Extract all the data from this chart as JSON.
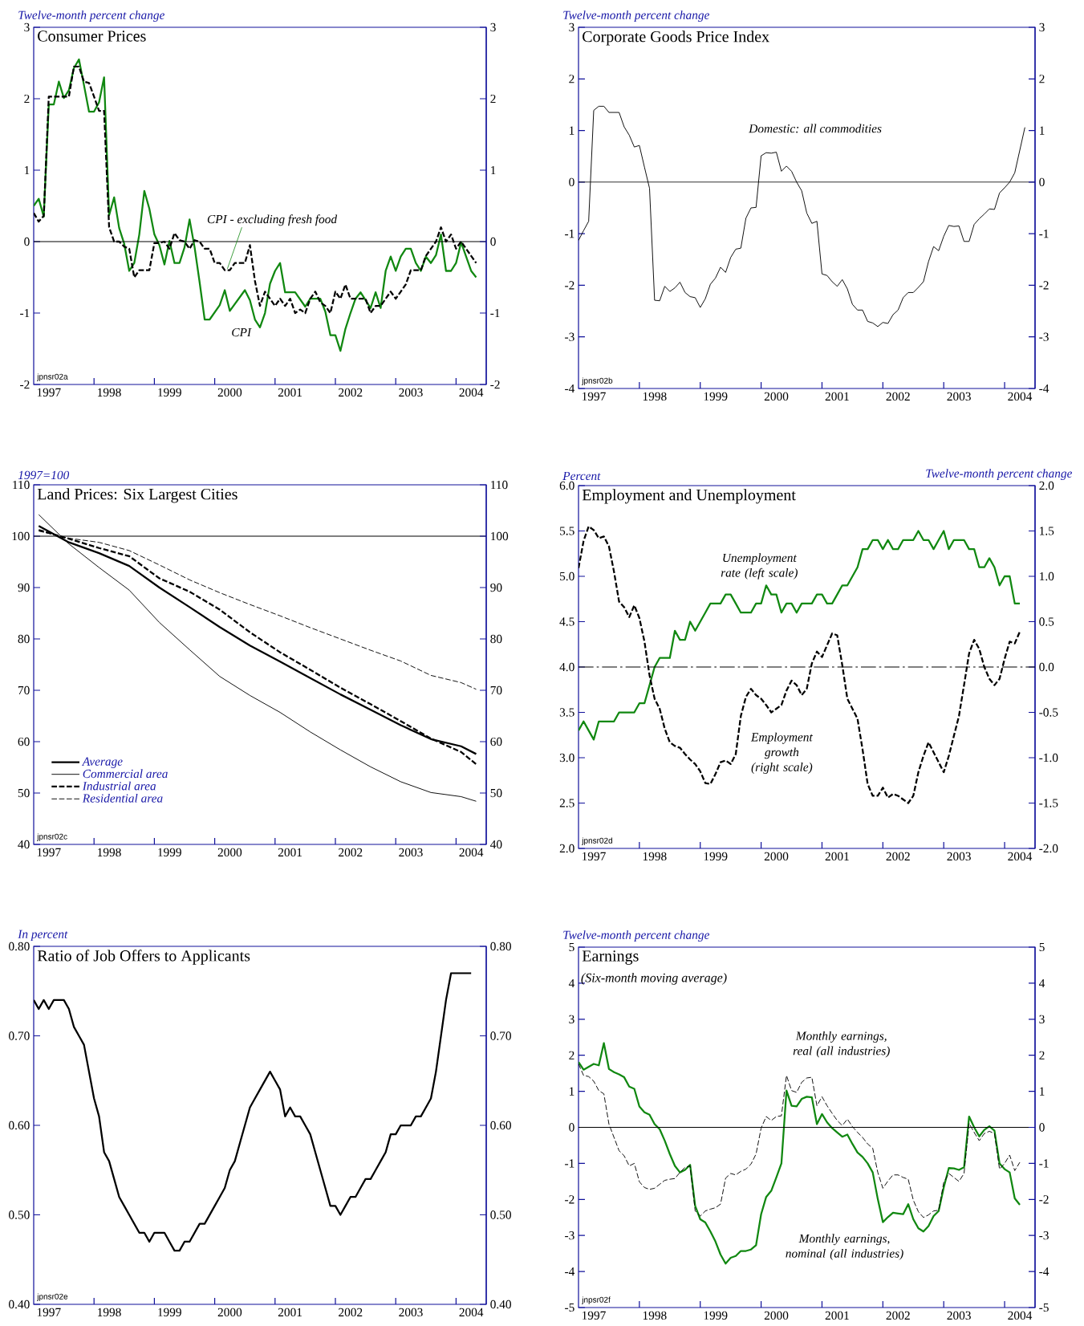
{
  "chart_data": [
    {
      "type": "line",
      "title": "Consumer Prices",
      "ylabel": "Twelve-month percent change",
      "annotations": [
        "jpnsr02a"
      ],
      "xlim": [
        "1997",
        "2004-07-01"
      ],
      "xticks": [
        {
          "value": "1997-04-01",
          "label": "1997"
        },
        {
          "value": "1998",
          "label": null
        },
        {
          "value": "1998-04-01",
          "label": "1998"
        },
        {
          "value": "1999",
          "label": null
        },
        {
          "value": "1999-04-01",
          "label": "1999"
        },
        {
          "value": "2000",
          "label": null
        },
        {
          "value": "2000-04-01",
          "label": "2000"
        },
        {
          "value": "2001",
          "label": null
        },
        {
          "value": "2001-04-01",
          "label": "2001"
        },
        {
          "value": "2002",
          "label": null
        },
        {
          "value": "2002-04-01",
          "label": "2002"
        },
        {
          "value": "2003",
          "label": null
        },
        {
          "value": "2003-04-01",
          "label": "2003"
        },
        {
          "value": "2004",
          "label": null
        },
        {
          "value": "2004-04-01",
          "label": "2004"
        }
      ],
      "ylim": [
        -2,
        3
      ],
      "yticks": [
        -2,
        -1,
        0,
        1,
        2,
        3
      ],
      "y2lim": [
        -2,
        3
      ],
      "y2ticks": [
        -2,
        -1,
        0,
        1,
        2,
        3
      ],
      "ref_lines": [
        {
          "axis": "y",
          "value": 0
        }
      ],
      "x": [
        "1997-01",
        "1997-02",
        "1997-03",
        "1997-04",
        "1997-05",
        "1997-06",
        "1997-07",
        "1997-08",
        "1997-09",
        "1997-10",
        "1997-11",
        "1997-12",
        "1998-01",
        "1998-02",
        "1998-03",
        "1998-04",
        "1998-05",
        "1998-06",
        "1998-07",
        "1998-08",
        "1998-09",
        "1998-10",
        "1998-11",
        "1998-12",
        "1999-01",
        "1999-02",
        "1999-03",
        "1999-04",
        "1999-05",
        "1999-06",
        "1999-07",
        "1999-08",
        "1999-09",
        "1999-10",
        "1999-11",
        "1999-12",
        "2000-01",
        "2000-02",
        "2000-03",
        "2000-04",
        "2000-05",
        "2000-06",
        "2000-07",
        "2000-08",
        "2000-09",
        "2000-10",
        "2000-11",
        "2000-12",
        "2001-01",
        "2001-02",
        "2001-03",
        "2001-04",
        "2001-05",
        "2001-06",
        "2001-07",
        "2001-08",
        "2001-09",
        "2001-10",
        "2001-11",
        "2001-12",
        "2002-01",
        "2002-02",
        "2002-03",
        "2002-04",
        "2002-05",
        "2002-06",
        "2002-07",
        "2002-08",
        "2002-09",
        "2002-10",
        "2002-11",
        "2002-12",
        "2003-01",
        "2003-02",
        "2003-03",
        "2003-04",
        "2003-05",
        "2003-06",
        "2003-07",
        "2003-08",
        "2003-09",
        "2003-10",
        "2003-11",
        "2003-12",
        "2004-01",
        "2004-02",
        "2004-03",
        "2004-04",
        "2004-05"
      ],
      "series": [
        {
          "name": "CPI",
          "color": "#118811",
          "line_style": "solid",
          "x": [
            "1997-01",
            "1997-02",
            "1997-03",
            "1997-04",
            "1997-05",
            "1997-06",
            "1997-07",
            "1997-08",
            "1997-09",
            "1997-10",
            "1997-11",
            "1997-12",
            "1998-01",
            "1998-02",
            "1998-03",
            "1998-04",
            "1998-05",
            "1998-06",
            "1998-07",
            "1998-08",
            "1998-09",
            "1998-10",
            "1998-11",
            "1998-12",
            "1999-01",
            "1999-02",
            "1999-03",
            "1999-04",
            "1999-05",
            "1999-06",
            "1999-07",
            "1999-08",
            "1999-09",
            "1999-10",
            "1999-11",
            "1999-12",
            "2000-02",
            "2000-03",
            "2000-04",
            "2000-07",
            "2000-08",
            "2000-09",
            "2000-10",
            "2000-11",
            "2000-12",
            "2001-01",
            "2001-02",
            "2001-03",
            "2001-05",
            "2001-07",
            "2001-08",
            "2001-10",
            "2001-11",
            "2001-12",
            "2002-01",
            "2002-02",
            "2002-03",
            "2002-04",
            "2002-05",
            "2002-06",
            "2002-07",
            "2002-08",
            "2002-09",
            "2002-10",
            "2002-11",
            "2002-12",
            "2003-01",
            "2003-02",
            "2003-03",
            "2003-04",
            "2003-05",
            "2003-06",
            "2003-07",
            "2003-08",
            "2003-09",
            "2003-10",
            "2003-11",
            "2003-12",
            "2004-01",
            "2004-02",
            "2004-03",
            "2004-04",
            "2004-05"
          ],
          "values": [
            0.5,
            0.6,
            0.35,
            1.92,
            1.92,
            2.24,
            2.01,
            2.12,
            2.43,
            2.55,
            2.19,
            1.82,
            1.82,
            1.95,
            2.3,
            0.37,
            0.62,
            0.19,
            -0.03,
            -0.41,
            -0.3,
            0.1,
            0.71,
            0.46,
            0.1,
            -0.05,
            -0.32,
            0.01,
            -0.3,
            -0.3,
            -0.08,
            0.31,
            -0.08,
            -0.57,
            -1.09,
            -1.09,
            -0.89,
            -0.68,
            -0.97,
            -0.68,
            -0.82,
            -1.09,
            -1.2,
            -1.0,
            -0.59,
            -0.41,
            -0.3,
            -0.71,
            -0.71,
            -0.91,
            -0.8,
            -0.8,
            -0.98,
            -1.31,
            -1.31,
            -1.53,
            -1.22,
            -1.0,
            -0.8,
            -0.71,
            -0.82,
            -0.93,
            -0.71,
            -0.93,
            -0.41,
            -0.21,
            -0.41,
            -0.21,
            -0.1,
            -0.1,
            -0.3,
            -0.41,
            -0.21,
            -0.3,
            -0.19,
            0.1,
            -0.41,
            -0.41,
            -0.3,
            -0.01,
            -0.21,
            -0.41,
            -0.5
          ]
        },
        {
          "name": "CPI - excluding fresh food",
          "color": "#000000",
          "line_style": "dashed",
          "values": [
            0.4,
            0.28,
            0.36,
            2.03,
            2.03,
            2.03,
            2.03,
            2.03,
            2.45,
            2.45,
            2.24,
            2.22,
            2.03,
            1.83,
            1.83,
            0.2,
            0.0,
            0.0,
            -0.07,
            -0.1,
            -0.5,
            -0.4,
            -0.4,
            -0.4,
            -0.02,
            -0.02,
            0.0,
            -0.1,
            0.12,
            0.02,
            0.0,
            -0.1,
            0.02,
            0.0,
            -0.1,
            -0.1,
            -0.3,
            -0.3,
            -0.4,
            -0.4,
            -0.3,
            -0.3,
            -0.3,
            -0.05,
            -0.55,
            -0.9,
            -0.7,
            -0.8,
            -0.9,
            -0.8,
            -0.9,
            -0.8,
            -1.0,
            -0.95,
            -1.0,
            -0.8,
            -0.7,
            -0.85,
            -0.9,
            -1.0,
            -0.7,
            -0.8,
            -0.6,
            -0.8,
            -0.8,
            -0.8,
            -0.8,
            -1.0,
            -0.9,
            -0.9,
            -0.8,
            -0.7,
            -0.8,
            -0.7,
            -0.6,
            -0.4,
            -0.4,
            -0.4,
            -0.2,
            -0.1,
            0.0,
            0.2,
            0.0,
            0.1,
            -0.1,
            0.0,
            -0.1,
            -0.2,
            -0.3
          ]
        }
      ]
    },
    {
      "type": "line",
      "title": "Corporate Goods Price Index",
      "ylabel": "Twelve-month percent change",
      "annotations": [
        "jpnsr02b"
      ],
      "xlim": [
        "1997",
        "2004-07-01"
      ],
      "xticks": [
        {
          "value": "1997-04-01",
          "label": "1997"
        },
        {
          "value": "1998",
          "label": null
        },
        {
          "value": "1998-04-01",
          "label": "1998"
        },
        {
          "value": "1999",
          "label": null
        },
        {
          "value": "1999-04-01",
          "label": "1999"
        },
        {
          "value": "2000",
          "label": null
        },
        {
          "value": "2000-04-01",
          "label": "2000"
        },
        {
          "value": "2001",
          "label": null
        },
        {
          "value": "2001-04-01",
          "label": "2001"
        },
        {
          "value": "2002",
          "label": null
        },
        {
          "value": "2002-04-01",
          "label": "2002"
        },
        {
          "value": "2003",
          "label": null
        },
        {
          "value": "2003-04-01",
          "label": "2003"
        },
        {
          "value": "2004",
          "label": null
        },
        {
          "value": "2004-04-01",
          "label": "2004"
        }
      ],
      "ylim": [
        -4,
        3
      ],
      "yticks": [
        -4,
        -3,
        -2,
        -1,
        0,
        1,
        2,
        3
      ],
      "y2lim": [
        -4,
        3
      ],
      "y2ticks": [
        -4,
        -3,
        -2,
        -1,
        0,
        1,
        2,
        3
      ],
      "ref_lines": [
        {
          "axis": "y",
          "value": 0
        }
      ],
      "x": [
        "1997-01",
        "1997-02",
        "1997-03",
        "1997-04",
        "1997-05",
        "1997-06",
        "1997-07",
        "1997-08",
        "1997-09",
        "1997-10",
        "1997-11",
        "1997-12",
        "1998-01",
        "1998-02",
        "1998-03",
        "1998-04",
        "1998-05",
        "1998-06",
        "1998-07",
        "1998-08",
        "1998-09",
        "1998-10",
        "1998-11",
        "1998-12",
        "1999-01",
        "1999-02",
        "1999-03",
        "1999-04",
        "1999-05",
        "1999-06",
        "1999-07",
        "1999-08",
        "1999-09",
        "1999-10",
        "1999-11",
        "1999-12",
        "2000-01",
        "2000-02",
        "2000-03",
        "2000-04",
        "2000-05",
        "2000-06",
        "2000-07",
        "2000-08",
        "2000-09",
        "2000-10",
        "2000-11",
        "2000-12",
        "2001-01",
        "2001-02",
        "2001-03",
        "2001-04",
        "2001-05",
        "2001-06",
        "2001-07",
        "2001-08",
        "2001-09",
        "2001-10",
        "2001-11",
        "2001-12",
        "2002-01",
        "2002-02",
        "2002-03",
        "2002-04",
        "2002-05",
        "2002-06",
        "2002-07",
        "2002-08",
        "2002-09",
        "2002-10",
        "2002-11",
        "2002-12",
        "2003-01",
        "2003-02",
        "2003-03",
        "2003-04",
        "2003-05",
        "2003-06",
        "2003-07",
        "2003-08",
        "2003-09",
        "2003-10",
        "2003-11",
        "2003-12",
        "2004-01",
        "2004-02",
        "2004-03",
        "2004-04",
        "2004-05"
      ],
      "series": [
        {
          "name": "Domestic: all commodities",
          "color": "#000000",
          "line_style": "solid",
          "values": [
            -1.13,
            -0.94,
            -0.76,
            1.39,
            1.47,
            1.47,
            1.35,
            1.35,
            1.35,
            1.07,
            0.91,
            0.68,
            0.71,
            0.29,
            -0.12,
            -2.29,
            -2.3,
            -2.02,
            -2.12,
            -2.05,
            -1.94,
            -2.14,
            -2.22,
            -2.24,
            -2.43,
            -2.26,
            -1.98,
            -1.86,
            -1.65,
            -1.75,
            -1.46,
            -1.3,
            -1.28,
            -0.7,
            -0.5,
            -0.49,
            0.51,
            0.57,
            0.56,
            0.58,
            0.21,
            0.31,
            0.21,
            0.0,
            -0.17,
            -0.6,
            -0.8,
            -0.76,
            -1.78,
            -1.81,
            -1.93,
            -2.02,
            -1.89,
            -2.07,
            -2.37,
            -2.48,
            -2.48,
            -2.7,
            -2.73,
            -2.8,
            -2.72,
            -2.74,
            -2.57,
            -2.48,
            -2.24,
            -2.14,
            -2.14,
            -2.04,
            -1.93,
            -1.54,
            -1.25,
            -1.33,
            -1.05,
            -0.84,
            -0.86,
            -0.85,
            -1.15,
            -1.15,
            -0.82,
            -0.71,
            -0.62,
            -0.52,
            -0.53,
            -0.21,
            -0.11,
            0.0,
            0.18,
            0.62,
            1.06
          ]
        }
      ]
    },
    {
      "type": "line",
      "title": "Land Prices: Six Largest Cities",
      "ylabel": "1997=100",
      "annotations": [
        "jpnsr02c"
      ],
      "legend": "bottom left",
      "xlim": [
        "1997",
        "2004-07-01"
      ],
      "xticks": [
        {
          "value": "1997-04-01",
          "label": "1997"
        },
        {
          "value": "1998",
          "label": null
        },
        {
          "value": "1998-04-01",
          "label": "1998"
        },
        {
          "value": "1999",
          "label": null
        },
        {
          "value": "1999-04-01",
          "label": "1999"
        },
        {
          "value": "2000",
          "label": null
        },
        {
          "value": "2000-04-01",
          "label": "2000"
        },
        {
          "value": "2001",
          "label": null
        },
        {
          "value": "2001-04-01",
          "label": "2001"
        },
        {
          "value": "2002",
          "label": null
        },
        {
          "value": "2002-04-01",
          "label": "2002"
        },
        {
          "value": "2003",
          "label": null
        },
        {
          "value": "2003-04-01",
          "label": "2003"
        },
        {
          "value": "2004",
          "label": null
        },
        {
          "value": "2004-04-01",
          "label": "2004"
        }
      ],
      "ylim": [
        40,
        110
      ],
      "yticks": [
        40,
        50,
        60,
        70,
        80,
        90,
        100,
        110
      ],
      "y2lim": [
        40,
        110
      ],
      "y2ticks": [
        40,
        50,
        60,
        70,
        80,
        90,
        100,
        110
      ],
      "ref_lines": [
        {
          "axis": "y",
          "value": 100
        }
      ],
      "x": [
        "1997-02",
        "1997-08",
        "1998-02",
        "1998-08",
        "1999-02",
        "1999-08",
        "2000-02",
        "2000-08",
        "2001-02",
        "2001-08",
        "2002-02",
        "2002-08",
        "2003-02",
        "2003-08",
        "2004-02",
        "2004-05"
      ],
      "series": [
        {
          "name": "Average",
          "color": "#000000",
          "line_style": "solid",
          "values": [
            102.0,
            98.8,
            96.7,
            94.2,
            90.0,
            86.2,
            82.3,
            78.7,
            75.6,
            72.4,
            69.2,
            66.2,
            63.2,
            60.5,
            59.1,
            57.6
          ]
        },
        {
          "name": "Commercial area",
          "color": "#000000",
          "line_style": "solid",
          "values": [
            104.2,
            98.5,
            93.9,
            89.5,
            83.2,
            77.9,
            72.7,
            69.0,
            65.7,
            61.9,
            58.4,
            55.1,
            52.2,
            50.1,
            49.3,
            48.4
          ]
        },
        {
          "name": "Industrial area",
          "color": "#000000",
          "line_style": "dashed",
          "values": [
            101.2,
            99.5,
            97.7,
            96.1,
            91.8,
            89.2,
            85.7,
            81.3,
            77.4,
            74.0,
            70.5,
            67.3,
            64.0,
            60.6,
            58.0,
            55.6
          ]
        },
        {
          "name": "Residential area",
          "color": "#000000",
          "line_style": "dashed",
          "values": [
            101.0,
            99.6,
            98.8,
            97.2,
            94.4,
            91.5,
            89.0,
            86.7,
            84.5,
            82.2,
            80.0,
            77.8,
            75.7,
            72.9,
            71.5,
            70.2
          ]
        }
      ]
    },
    {
      "type": "line",
      "title": "Employment and Unemployment",
      "ylabel": "Percent",
      "y2label": "Twelve-month percent change",
      "annotations": [
        "jpnsr02d"
      ],
      "xlim": [
        "1997",
        "2004-07-01"
      ],
      "xticks": [
        {
          "value": "1997-04-01",
          "label": "1997"
        },
        {
          "value": "1998",
          "label": null
        },
        {
          "value": "1998-04-01",
          "label": "1998"
        },
        {
          "value": "1999",
          "label": null
        },
        {
          "value": "1999-04-01",
          "label": "1999"
        },
        {
          "value": "2000",
          "label": null
        },
        {
          "value": "2000-04-01",
          "label": "2000"
        },
        {
          "value": "2001",
          "label": null
        },
        {
          "value": "2001-04-01",
          "label": "2001"
        },
        {
          "value": "2002",
          "label": null
        },
        {
          "value": "2002-04-01",
          "label": "2002"
        },
        {
          "value": "2003",
          "label": null
        },
        {
          "value": "2003-04-01",
          "label": "2003"
        },
        {
          "value": "2004",
          "label": null
        },
        {
          "value": "2004-04-01",
          "label": "2004"
        }
      ],
      "ylim": [
        2,
        6
      ],
      "yticks": [
        {
          "value": 2,
          "label": "2.0"
        },
        {
          "value": 2.5,
          "label": "2.5"
        },
        {
          "value": 3,
          "label": "3.0"
        },
        {
          "value": 3.5,
          "label": "3.5"
        },
        {
          "value": 4,
          "label": "4.0"
        },
        {
          "value": 4.5,
          "label": "4.5"
        },
        {
          "value": 5,
          "label": "5.0"
        },
        {
          "value": 5.5,
          "label": "5.5"
        },
        {
          "value": 6,
          "label": "6.0"
        }
      ],
      "y2lim": [
        -2,
        2
      ],
      "y2ticks": [
        {
          "value": -2,
          "label": "-2.0"
        },
        {
          "value": -1.5,
          "label": "-1.5"
        },
        {
          "value": -1,
          "label": "-1.0"
        },
        {
          "value": -0.5,
          "label": "-0.5"
        },
        {
          "value": 0,
          "label": "0.0"
        },
        {
          "value": 0.5,
          "label": "0.5"
        },
        {
          "value": 1,
          "label": "1.0"
        },
        {
          "value": 1.5,
          "label": "1.5"
        },
        {
          "value": 2,
          "label": "2.0"
        }
      ],
      "ref_lines": [
        {
          "axis": "y2",
          "value": 0,
          "line_style": "dashed"
        }
      ],
      "x": [
        "1997-01",
        "1997-02",
        "1997-03",
        "1997-04",
        "1997-05",
        "1997-06",
        "1997-07",
        "1997-08",
        "1997-09",
        "1997-10",
        "1997-11",
        "1997-12",
        "1998-01",
        "1998-02",
        "1998-03",
        "1998-04",
        "1998-05",
        "1998-06",
        "1998-07",
        "1998-08",
        "1998-09",
        "1998-10",
        "1998-11",
        "1998-12",
        "1999-01",
        "1999-02",
        "1999-03",
        "1999-04",
        "1999-05",
        "1999-06",
        "1999-07",
        "1999-08",
        "1999-09",
        "1999-10",
        "1999-11",
        "1999-12",
        "2000-01",
        "2000-02",
        "2000-03",
        "2000-04",
        "2000-05",
        "2000-06",
        "2000-07",
        "2000-08",
        "2000-09",
        "2000-10",
        "2000-11",
        "2000-12",
        "2001-01",
        "2001-02",
        "2001-03",
        "2001-04",
        "2001-05",
        "2001-06",
        "2001-07",
        "2001-08",
        "2001-09",
        "2001-10",
        "2001-11",
        "2001-12",
        "2002-01",
        "2002-02",
        "2002-03",
        "2002-04",
        "2002-05",
        "2002-06",
        "2002-07",
        "2002-08",
        "2002-09",
        "2002-10",
        "2002-11",
        "2002-12",
        "2003-01",
        "2003-02",
        "2003-03",
        "2003-04",
        "2003-05",
        "2003-06",
        "2003-07",
        "2003-08",
        "2003-09",
        "2003-10",
        "2003-11",
        "2003-12",
        "2004-01",
        "2004-02",
        "2004-03",
        "2004-04"
      ],
      "series": [
        {
          "name": "Unemployment rate (left scale)",
          "color": "#118811",
          "line_style": "solid",
          "values": [
            3.3,
            3.4,
            3.3,
            3.2,
            3.4,
            3.4,
            3.4,
            3.4,
            3.5,
            3.5,
            3.5,
            3.5,
            3.6,
            3.6,
            3.8,
            4.0,
            4.1,
            4.1,
            4.1,
            4.4,
            4.3,
            4.3,
            4.5,
            4.4,
            4.5,
            4.6,
            4.7,
            4.7,
            4.7,
            4.8,
            4.8,
            4.7,
            4.6,
            4.6,
            4.6,
            4.7,
            4.7,
            4.9,
            4.8,
            4.8,
            4.6,
            4.7,
            4.7,
            4.6,
            4.7,
            4.7,
            4.7,
            4.8,
            4.8,
            4.7,
            4.7,
            4.8,
            4.9,
            4.9,
            5.0,
            5.1,
            5.3,
            5.3,
            5.4,
            5.4,
            5.3,
            5.4,
            5.3,
            5.3,
            5.4,
            5.4,
            5.4,
            5.5,
            5.4,
            5.4,
            5.3,
            5.4,
            5.5,
            5.3,
            5.4,
            5.4,
            5.4,
            5.3,
            5.3,
            5.1,
            5.1,
            5.2,
            5.1,
            4.9,
            5.0,
            5.0,
            4.7,
            4.7
          ]
        },
        {
          "name": "Employment growth (right scale)",
          "color": "#000000",
          "line_style": "dashed",
          "axis": "y2",
          "values": [
            1.09,
            1.39,
            1.55,
            1.51,
            1.42,
            1.44,
            1.33,
            1.05,
            0.72,
            0.66,
            0.55,
            0.68,
            0.54,
            0.28,
            -0.09,
            -0.35,
            -0.46,
            -0.68,
            -0.83,
            -0.87,
            -0.89,
            -0.96,
            -1.02,
            -1.07,
            -1.15,
            -1.28,
            -1.29,
            -1.18,
            -1.05,
            -1.03,
            -1.07,
            -0.96,
            -0.54,
            -0.33,
            -0.24,
            -0.31,
            -0.35,
            -0.42,
            -0.5,
            -0.46,
            -0.42,
            -0.26,
            -0.15,
            -0.2,
            -0.31,
            -0.24,
            0.04,
            0.17,
            0.11,
            0.24,
            0.37,
            0.35,
            0.02,
            -0.35,
            -0.46,
            -0.57,
            -0.91,
            -1.29,
            -1.42,
            -1.42,
            -1.33,
            -1.44,
            -1.4,
            -1.42,
            -1.46,
            -1.5,
            -1.42,
            -1.16,
            -0.98,
            -0.83,
            -0.94,
            -1.05,
            -1.16,
            -0.98,
            -0.76,
            -0.54,
            -0.2,
            0.15,
            0.3,
            0.2,
            0.0,
            -0.13,
            -0.2,
            -0.13,
            0.09,
            0.28,
            0.26,
            0.39
          ]
        }
      ]
    },
    {
      "type": "line",
      "title": "Ratio of Job Offers to Applicants",
      "ylabel": "In percent",
      "annotations": [
        "jpnsr02e"
      ],
      "xlim": [
        "1997",
        "2004-07-01"
      ],
      "xticks": [
        {
          "value": "1997-04-01",
          "label": "1997"
        },
        {
          "value": "1998",
          "label": null
        },
        {
          "value": "1998-04-01",
          "label": "1998"
        },
        {
          "value": "1999",
          "label": null
        },
        {
          "value": "1999-04-01",
          "label": "1999"
        },
        {
          "value": "2000",
          "label": null
        },
        {
          "value": "2000-04-01",
          "label": "2000"
        },
        {
          "value": "2001",
          "label": null
        },
        {
          "value": "2001-04-01",
          "label": "2001"
        },
        {
          "value": "2002",
          "label": null
        },
        {
          "value": "2002-04-01",
          "label": "2002"
        },
        {
          "value": "2003",
          "label": null
        },
        {
          "value": "2003-04-01",
          "label": "2003"
        },
        {
          "value": "2004",
          "label": null
        },
        {
          "value": "2004-04-01",
          "label": "2004"
        }
      ],
      "ylim": [
        0.4,
        0.8
      ],
      "yticks": [
        {
          "value": 0.4,
          "label": "0.40"
        },
        {
          "value": 0.5,
          "label": "0.50"
        },
        {
          "value": 0.6,
          "label": "0.60"
        },
        {
          "value": 0.7,
          "label": "0.70"
        },
        {
          "value": 0.8,
          "label": "0.80"
        }
      ],
      "y2lim": [
        0.4,
        0.8
      ],
      "y2ticks": [
        {
          "value": 0.4,
          "label": "0.40"
        },
        {
          "value": 0.5,
          "label": "0.50"
        },
        {
          "value": 0.6,
          "label": "0.60"
        },
        {
          "value": 0.7,
          "label": "0.70"
        },
        {
          "value": 0.8,
          "label": "0.80"
        }
      ],
      "x": [
        "1997-01",
        "1997-02",
        "1997-03",
        "1997-04",
        "1997-05",
        "1997-06",
        "1997-07",
        "1997-08",
        "1997-09",
        "1997-10",
        "1997-11",
        "1997-12",
        "1998-01",
        "1998-02",
        "1998-03",
        "1998-04",
        "1998-05",
        "1998-06",
        "1998-07",
        "1998-08",
        "1998-09",
        "1998-10",
        "1998-11",
        "1998-12",
        "1999-01",
        "1999-02",
        "1999-03",
        "1999-04",
        "1999-05",
        "1999-06",
        "1999-07",
        "1999-08",
        "1999-09",
        "1999-10",
        "1999-11",
        "1999-12",
        "2000-01",
        "2000-02",
        "2000-03",
        "2000-04",
        "2000-05",
        "2000-06",
        "2000-07",
        "2000-08",
        "2000-09",
        "2000-10",
        "2000-11",
        "2000-12",
        "2001-01",
        "2001-02",
        "2001-03",
        "2001-04",
        "2001-05",
        "2001-06",
        "2001-07",
        "2001-08",
        "2001-09",
        "2001-10",
        "2001-11",
        "2001-12",
        "2002-01",
        "2002-02",
        "2002-03",
        "2002-04",
        "2002-05",
        "2002-06",
        "2002-07",
        "2002-08",
        "2002-09",
        "2002-10",
        "2002-11",
        "2002-12",
        "2003-01",
        "2003-02",
        "2003-03",
        "2003-04",
        "2003-05",
        "2003-06",
        "2003-07",
        "2003-08",
        "2003-09",
        "2003-10",
        "2003-11",
        "2003-12",
        "2004-01",
        "2004-02",
        "2004-03",
        "2004-04"
      ],
      "series": [
        {
          "color": "#000000",
          "line_style": "solid",
          "values": [
            0.74,
            0.73,
            0.74,
            0.73,
            0.74,
            0.74,
            0.74,
            0.73,
            0.71,
            0.7,
            0.69,
            0.66,
            0.63,
            0.61,
            0.57,
            0.56,
            0.54,
            0.52,
            0.51,
            0.5,
            0.49,
            0.48,
            0.48,
            0.47,
            0.48,
            0.48,
            0.48,
            0.47,
            0.46,
            0.46,
            0.47,
            0.47,
            0.48,
            0.49,
            0.49,
            0.5,
            0.51,
            0.52,
            0.53,
            0.55,
            0.56,
            0.58,
            0.6,
            0.62,
            0.63,
            0.64,
            0.65,
            0.66,
            0.65,
            0.64,
            0.61,
            0.62,
            0.61,
            0.61,
            0.6,
            0.59,
            0.57,
            0.55,
            0.53,
            0.51,
            0.51,
            0.5,
            0.51,
            0.52,
            0.52,
            0.53,
            0.54,
            0.54,
            0.55,
            0.56,
            0.57,
            0.59,
            0.59,
            0.6,
            0.6,
            0.6,
            0.61,
            0.61,
            0.62,
            0.63,
            0.66,
            0.7,
            0.74,
            0.77,
            0.77,
            0.77,
            0.77,
            0.77
          ]
        }
      ]
    },
    {
      "type": "line",
      "title": "Earnings",
      "subtitle": "(Six-month moving average)",
      "ylabel": "Twelve-month percent change",
      "annotations": [
        "jnpsr02f"
      ],
      "xlim": [
        "1997",
        "2004-07-01"
      ],
      "xticks": [
        {
          "value": "1997-04-01",
          "label": "1997"
        },
        {
          "value": "1998",
          "label": null
        },
        {
          "value": "1998-04-01",
          "label": "1998"
        },
        {
          "value": "1999",
          "label": null
        },
        {
          "value": "1999-04-01",
          "label": "1999"
        },
        {
          "value": "2000",
          "label": null
        },
        {
          "value": "2000-04-01",
          "label": "2000"
        },
        {
          "value": "2001",
          "label": null
        },
        {
          "value": "2001-04-01",
          "label": "2001"
        },
        {
          "value": "2002",
          "label": null
        },
        {
          "value": "2002-04-01",
          "label": "2002"
        },
        {
          "value": "2003",
          "label": null
        },
        {
          "value": "2003-04-01",
          "label": "2003"
        },
        {
          "value": "2004",
          "label": null
        },
        {
          "value": "2004-04-01",
          "label": "2004"
        }
      ],
      "ylim": [
        -5,
        5
      ],
      "yticks": [
        -5,
        -4,
        -3,
        -2,
        -1,
        0,
        1,
        2,
        3,
        4,
        5
      ],
      "y2lim": [
        -5,
        5
      ],
      "y2ticks": [
        -5,
        -4,
        -3,
        -2,
        -1,
        0,
        1,
        2,
        3,
        4,
        5
      ],
      "ref_lines": [
        {
          "axis": "y",
          "value": 0
        }
      ],
      "x": [
        "1997-01",
        "1997-02",
        "1997-03",
        "1997-04",
        "1997-05",
        "1997-06",
        "1997-07",
        "1997-08",
        "1997-09",
        "1997-10",
        "1997-11",
        "1997-12",
        "1998-01",
        "1998-02",
        "1998-03",
        "1998-04",
        "1998-05",
        "1998-06",
        "1998-07",
        "1998-08",
        "1998-09",
        "1998-10",
        "1998-11",
        "1998-12",
        "1999-01",
        "1999-02",
        "1999-03",
        "1999-04",
        "1999-05",
        "1999-06",
        "1999-07",
        "1999-08",
        "1999-09",
        "1999-10",
        "1999-11",
        "1999-12",
        "2000-01",
        "2000-02",
        "2000-03",
        "2000-04",
        "2000-05",
        "2000-06",
        "2000-07",
        "2000-08",
        "2000-09",
        "2000-10",
        "2000-11",
        "2000-12",
        "2001-01",
        "2001-02",
        "2001-03",
        "2001-04",
        "2001-05",
        "2001-06",
        "2001-07",
        "2001-08",
        "2001-09",
        "2001-10",
        "2001-11",
        "2001-12",
        "2002-01",
        "2002-02",
        "2002-03",
        "2002-04",
        "2002-05",
        "2002-06",
        "2002-07",
        "2002-08",
        "2002-09",
        "2002-10",
        "2002-11",
        "2002-12",
        "2003-01",
        "2003-02",
        "2003-03",
        "2003-04",
        "2003-05",
        "2003-06",
        "2003-07",
        "2003-08",
        "2003-09",
        "2003-10",
        "2003-11",
        "2003-12",
        "2004-01",
        "2004-02",
        "2004-03",
        "2004-04"
      ],
      "series": [
        {
          "name": "Monthly earnings, nominal (all industries)",
          "color": "#118811",
          "line_style": "solid",
          "values": [
            1.81,
            1.6,
            1.68,
            1.76,
            1.72,
            2.34,
            1.62,
            1.53,
            1.47,
            1.39,
            1.13,
            1.07,
            0.58,
            0.42,
            0.35,
            0.09,
            -0.05,
            -0.37,
            -0.74,
            -1.07,
            -1.25,
            -1.18,
            -1.04,
            -2.18,
            -2.55,
            -2.64,
            -2.89,
            -3.17,
            -3.53,
            -3.78,
            -3.62,
            -3.57,
            -3.43,
            -3.43,
            -3.39,
            -3.27,
            -2.41,
            -1.93,
            -1.76,
            -1.39,
            -1.0,
            1.02,
            0.6,
            0.58,
            0.79,
            0.85,
            0.83,
            0.09,
            0.37,
            0.14,
            -0.02,
            -0.14,
            -0.26,
            -0.2,
            -0.46,
            -0.7,
            -0.82,
            -1.0,
            -1.25,
            -1.99,
            -2.63,
            -2.49,
            -2.37,
            -2.39,
            -2.41,
            -2.13,
            -2.55,
            -2.8,
            -2.89,
            -2.74,
            -2.46,
            -2.32,
            -1.67,
            -1.13,
            -1.14,
            -1.18,
            -1.11,
            0.3,
            0.0,
            -0.25,
            -0.07,
            0.03,
            -0.09,
            -1.0,
            -1.16,
            -1.25,
            -1.97,
            -2.15
          ]
        },
        {
          "name": "Monthly earnings, real (all industries)",
          "color": "#000000",
          "line_style": "dashed",
          "values": [
            1.76,
            1.44,
            1.41,
            1.28,
            1.02,
            0.93,
            0.09,
            -0.28,
            -0.65,
            -0.79,
            -1.07,
            -1.0,
            -1.51,
            -1.67,
            -1.72,
            -1.69,
            -1.58,
            -1.47,
            -1.44,
            -1.42,
            -1.25,
            -1.11,
            -1.07,
            -2.32,
            -2.46,
            -2.32,
            -2.27,
            -2.23,
            -2.13,
            -1.41,
            -1.28,
            -1.32,
            -1.22,
            -1.16,
            -1.02,
            -0.74,
            -0.02,
            0.3,
            0.19,
            0.3,
            0.32,
            1.44,
            1.02,
            0.97,
            1.25,
            1.37,
            1.39,
            0.6,
            0.85,
            0.6,
            0.39,
            0.19,
            0.05,
            0.23,
            0.02,
            -0.14,
            -0.28,
            -0.46,
            -0.58,
            -1.25,
            -1.69,
            -1.49,
            -1.32,
            -1.32,
            -1.39,
            -1.44,
            -2.02,
            -2.34,
            -2.5,
            -2.43,
            -2.32,
            -2.3,
            -1.53,
            -1.28,
            -1.39,
            -1.5,
            -1.28,
            0.11,
            -0.14,
            -0.37,
            -0.17,
            -0.11,
            -0.17,
            -1.16,
            -1.0,
            -0.77,
            -1.2,
            -0.97
          ]
        }
      ]
    }
  ]
}
